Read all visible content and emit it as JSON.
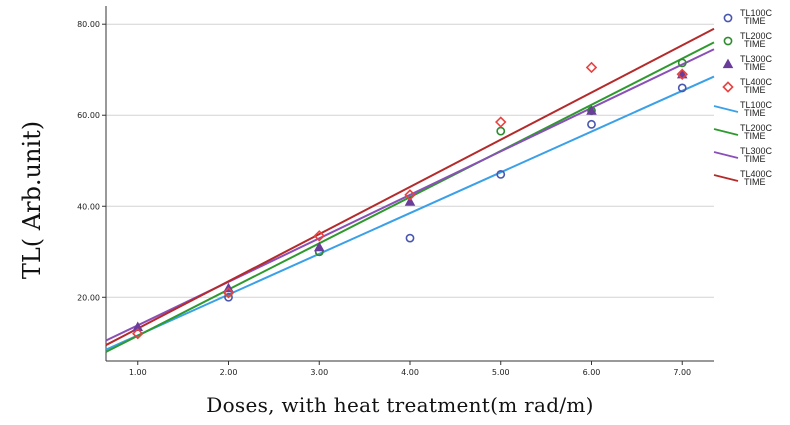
{
  "chart_data": {
    "type": "scatter",
    "xlabel": "Doses, with heat treatment(m rad/m)",
    "ylabel": "TL( Arb.unit)",
    "xlim": [
      0.65,
      7.35
    ],
    "ylim": [
      6.0,
      84.0
    ],
    "x_ticks": [
      1,
      2,
      3,
      4,
      5,
      6,
      7
    ],
    "x_tick_labels": [
      "1.00",
      "2.00",
      "3.00",
      "4.00",
      "5.00",
      "6.00",
      "7.00"
    ],
    "y_ticks": [
      20,
      40,
      60,
      80
    ],
    "y_tick_labels": [
      "20.00",
      "40.00",
      "60.00",
      "80.00"
    ],
    "grid": "horizontal",
    "legend_position": "right",
    "series": [
      {
        "name": "TL100C TIME",
        "marker": "circle",
        "color": "#4856b0",
        "x": [
          2,
          3,
          4,
          5,
          6,
          7
        ],
        "y": [
          20.0,
          30.0,
          33.0,
          47.0,
          58.0,
          66.0
        ]
      },
      {
        "name": "TL200C TIME",
        "marker": "circle",
        "color": "#2e8b2e",
        "x": [
          2,
          3,
          5,
          6,
          7
        ],
        "y": [
          21.0,
          30.0,
          56.5,
          61.0,
          71.5
        ]
      },
      {
        "name": "TL300C TIME",
        "marker": "triangle",
        "color": "#6a3d9a",
        "x": [
          1,
          2,
          3,
          4,
          6,
          7
        ],
        "y": [
          13.5,
          22.0,
          31.0,
          41.0,
          61.0,
          69.0
        ]
      },
      {
        "name": "TL400C TIME",
        "marker": "diamond",
        "color": "#e8423f",
        "x": [
          1,
          2,
          3,
          4,
          5,
          6,
          7
        ],
        "y": [
          12.0,
          21.0,
          33.5,
          42.5,
          58.5,
          70.5,
          69.0
        ]
      }
    ],
    "fit_lines": [
      {
        "name": "TL100C TIME",
        "color": "#3aa0e8",
        "x": [
          0.65,
          7.35
        ],
        "y": [
          8.5,
          68.5
        ]
      },
      {
        "name": "TL200C TIME",
        "color": "#2e9a2e",
        "x": [
          0.65,
          7.35
        ],
        "y": [
          8.0,
          76.0
        ]
      },
      {
        "name": "TL300C TIME",
        "color": "#8a4fb8",
        "x": [
          0.65,
          7.35
        ],
        "y": [
          10.5,
          74.5
        ]
      },
      {
        "name": "TL400C TIME",
        "color": "#b52a2a",
        "x": [
          0.65,
          7.35
        ],
        "y": [
          9.5,
          79.0
        ]
      }
    ]
  }
}
